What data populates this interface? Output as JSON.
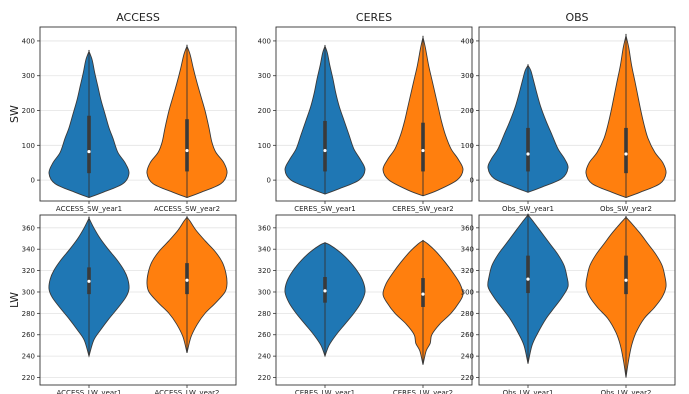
{
  "chart_data": [
    {
      "type": "violin",
      "title": "ACCESS",
      "ylabel": "SW",
      "ylim": [
        -60,
        440
      ],
      "yticks": [
        0,
        100,
        200,
        300,
        400
      ],
      "series": [
        {
          "category": "ACCESS_SW_year1",
          "color": "#1f77b4",
          "min": -50,
          "q1": 20,
          "median": 82,
          "q3": 185,
          "max": 370,
          "profile": [
            [
              -50,
              0
            ],
            [
              -35,
              0.35
            ],
            [
              -10,
              0.85
            ],
            [
              20,
              1.0
            ],
            [
              50,
              0.9
            ],
            [
              80,
              0.72
            ],
            [
              120,
              0.6
            ],
            [
              150,
              0.5
            ],
            [
              190,
              0.4
            ],
            [
              230,
              0.3
            ],
            [
              270,
              0.22
            ],
            [
              310,
              0.14
            ],
            [
              345,
              0.08
            ],
            [
              370,
              0
            ]
          ]
        },
        {
          "category": "ACCESS_SW_year2",
          "color": "#ff7f0e",
          "min": -50,
          "q1": 25,
          "median": 85,
          "q3": 175,
          "max": 385,
          "profile": [
            [
              -50,
              0
            ],
            [
              -35,
              0.35
            ],
            [
              -10,
              0.85
            ],
            [
              20,
              1.0
            ],
            [
              50,
              0.92
            ],
            [
              80,
              0.72
            ],
            [
              110,
              0.62
            ],
            [
              150,
              0.55
            ],
            [
              200,
              0.45
            ],
            [
              240,
              0.35
            ],
            [
              280,
              0.25
            ],
            [
              320,
              0.16
            ],
            [
              360,
              0.08
            ],
            [
              385,
              0
            ]
          ]
        }
      ]
    },
    {
      "type": "violin",
      "title": "CERES",
      "ylabel": "",
      "ylim": [
        -60,
        440
      ],
      "yticks": [
        0,
        100,
        200,
        300,
        400
      ],
      "series": [
        {
          "category": "CERES_SW_year1",
          "color": "#1f77b4",
          "min": -40,
          "q1": 25,
          "median": 85,
          "q3": 170,
          "max": 385,
          "profile": [
            [
              -40,
              0
            ],
            [
              -25,
              0.35
            ],
            [
              0,
              0.85
            ],
            [
              30,
              1.0
            ],
            [
              60,
              0.88
            ],
            [
              90,
              0.72
            ],
            [
              130,
              0.6
            ],
            [
              170,
              0.48
            ],
            [
              210,
              0.36
            ],
            [
              250,
              0.27
            ],
            [
              290,
              0.2
            ],
            [
              330,
              0.12
            ],
            [
              365,
              0.06
            ],
            [
              385,
              0
            ]
          ]
        },
        {
          "category": "CERES_SW_year2",
          "color": "#ff7f0e",
          "min": -45,
          "q1": 25,
          "median": 85,
          "q3": 165,
          "max": 410,
          "profile": [
            [
              -45,
              0
            ],
            [
              -30,
              0.35
            ],
            [
              0,
              0.85
            ],
            [
              30,
              1.0
            ],
            [
              60,
              0.88
            ],
            [
              90,
              0.7
            ],
            [
              130,
              0.56
            ],
            [
              170,
              0.46
            ],
            [
              210,
              0.38
            ],
            [
              250,
              0.3
            ],
            [
              290,
              0.22
            ],
            [
              330,
              0.14
            ],
            [
              380,
              0.06
            ],
            [
              410,
              0
            ]
          ]
        }
      ]
    },
    {
      "type": "violin",
      "title": "OBS",
      "ylabel": "",
      "ylim": [
        -60,
        440
      ],
      "yticks": [
        0,
        100,
        200,
        300,
        400
      ],
      "series": [
        {
          "category": "Obs_SW_year1",
          "color": "#1f77b4",
          "min": -35,
          "q1": 25,
          "median": 75,
          "q3": 150,
          "max": 330,
          "profile": [
            [
              -35,
              0
            ],
            [
              -20,
              0.35
            ],
            [
              5,
              0.85
            ],
            [
              35,
              1.0
            ],
            [
              60,
              0.92
            ],
            [
              90,
              0.75
            ],
            [
              130,
              0.6
            ],
            [
              170,
              0.45
            ],
            [
              210,
              0.32
            ],
            [
              250,
              0.22
            ],
            [
              290,
              0.13
            ],
            [
              315,
              0.07
            ],
            [
              330,
              0
            ]
          ]
        },
        {
          "category": "Obs_SW_year2",
          "color": "#ff7f0e",
          "min": -50,
          "q1": 20,
          "median": 75,
          "q3": 150,
          "max": 415,
          "profile": [
            [
              -50,
              0
            ],
            [
              -35,
              0.35
            ],
            [
              -10,
              0.85
            ],
            [
              20,
              1.0
            ],
            [
              50,
              0.92
            ],
            [
              80,
              0.72
            ],
            [
              120,
              0.55
            ],
            [
              160,
              0.45
            ],
            [
              200,
              0.37
            ],
            [
              240,
              0.3
            ],
            [
              280,
              0.23
            ],
            [
              330,
              0.14
            ],
            [
              380,
              0.07
            ],
            [
              415,
              0
            ]
          ]
        }
      ]
    },
    {
      "type": "violin",
      "title": "",
      "ylabel": "LW",
      "ylim": [
        213,
        372
      ],
      "yticks": [
        220,
        240,
        260,
        280,
        300,
        320,
        340,
        360
      ],
      "series": [
        {
          "category": "ACCESS_LW_year1",
          "color": "#1f77b4",
          "min": 240,
          "q1": 298,
          "median": 310,
          "q3": 323,
          "max": 369,
          "profile": [
            [
              240,
              0
            ],
            [
              255,
              0.12
            ],
            [
              265,
              0.3
            ],
            [
              275,
              0.5
            ],
            [
              285,
              0.72
            ],
            [
              295,
              0.92
            ],
            [
              303,
              1.0
            ],
            [
              312,
              0.97
            ],
            [
              320,
              0.88
            ],
            [
              330,
              0.7
            ],
            [
              340,
              0.48
            ],
            [
              350,
              0.28
            ],
            [
              360,
              0.12
            ],
            [
              369,
              0
            ]
          ]
        },
        {
          "category": "ACCESS_LW_year2",
          "color": "#ff7f0e",
          "min": 243,
          "q1": 298,
          "median": 311,
          "q3": 327,
          "max": 370,
          "profile": [
            [
              243,
              0
            ],
            [
              258,
              0.1
            ],
            [
              270,
              0.26
            ],
            [
              280,
              0.45
            ],
            [
              290,
              0.72
            ],
            [
              300,
              0.95
            ],
            [
              308,
              1.0
            ],
            [
              318,
              0.97
            ],
            [
              328,
              0.88
            ],
            [
              338,
              0.7
            ],
            [
              348,
              0.45
            ],
            [
              358,
              0.22
            ],
            [
              366,
              0.08
            ],
            [
              370,
              0
            ]
          ]
        }
      ]
    },
    {
      "type": "violin",
      "title": "",
      "ylabel": "",
      "ylim": [
        213,
        372
      ],
      "yticks": [
        220,
        240,
        260,
        280,
        300,
        320,
        340,
        360
      ],
      "series": [
        {
          "category": "CERES_LW_year1",
          "color": "#1f77b4",
          "min": 240,
          "q1": 290,
          "median": 301,
          "q3": 314,
          "max": 346,
          "profile": [
            [
              240,
              0
            ],
            [
              250,
              0.1
            ],
            [
              260,
              0.28
            ],
            [
              270,
              0.5
            ],
            [
              280,
              0.72
            ],
            [
              290,
              0.9
            ],
            [
              300,
              1.0
            ],
            [
              310,
              0.95
            ],
            [
              320,
              0.8
            ],
            [
              330,
              0.58
            ],
            [
              338,
              0.35
            ],
            [
              344,
              0.12
            ],
            [
              346,
              0
            ]
          ]
        },
        {
          "category": "CERES_LW_year2",
          "color": "#ff7f0e",
          "min": 232,
          "q1": 286,
          "median": 298,
          "q3": 313,
          "max": 348,
          "profile": [
            [
              232,
              0
            ],
            [
              245,
              0.08
            ],
            [
              252,
              0.18
            ],
            [
              260,
              0.22
            ],
            [
              270,
              0.42
            ],
            [
              280,
              0.7
            ],
            [
              290,
              0.9
            ],
            [
              298,
              1.0
            ],
            [
              308,
              0.92
            ],
            [
              318,
              0.75
            ],
            [
              328,
              0.55
            ],
            [
              338,
              0.32
            ],
            [
              345,
              0.12
            ],
            [
              348,
              0
            ]
          ]
        }
      ]
    },
    {
      "type": "violin",
      "title": "",
      "ylabel": "",
      "ylim": [
        213,
        372
      ],
      "yticks": [
        220,
        240,
        260,
        280,
        300,
        320,
        340,
        360
      ],
      "series": [
        {
          "category": "Obs_LW_year1",
          "color": "#1f77b4",
          "min": 233,
          "q1": 299,
          "median": 312,
          "q3": 334,
          "max": 372,
          "profile": [
            [
              233,
              0
            ],
            [
              250,
              0.1
            ],
            [
              262,
              0.25
            ],
            [
              275,
              0.45
            ],
            [
              285,
              0.65
            ],
            [
              295,
              0.85
            ],
            [
              305,
              1.0
            ],
            [
              315,
              0.97
            ],
            [
              325,
              0.9
            ],
            [
              335,
              0.75
            ],
            [
              345,
              0.55
            ],
            [
              355,
              0.35
            ],
            [
              365,
              0.15
            ],
            [
              372,
              0
            ]
          ]
        },
        {
          "category": "Obs_LW_year2",
          "color": "#ff7f0e",
          "min": 220,
          "q1": 298,
          "median": 311,
          "q3": 334,
          "max": 370,
          "profile": [
            [
              220,
              0
            ],
            [
              235,
              0.06
            ],
            [
              250,
              0.14
            ],
            [
              262,
              0.25
            ],
            [
              275,
              0.45
            ],
            [
              285,
              0.7
            ],
            [
              295,
              0.9
            ],
            [
              305,
              1.0
            ],
            [
              315,
              0.97
            ],
            [
              325,
              0.9
            ],
            [
              335,
              0.75
            ],
            [
              345,
              0.55
            ],
            [
              355,
              0.35
            ],
            [
              365,
              0.12
            ],
            [
              370,
              0
            ]
          ]
        }
      ]
    }
  ]
}
